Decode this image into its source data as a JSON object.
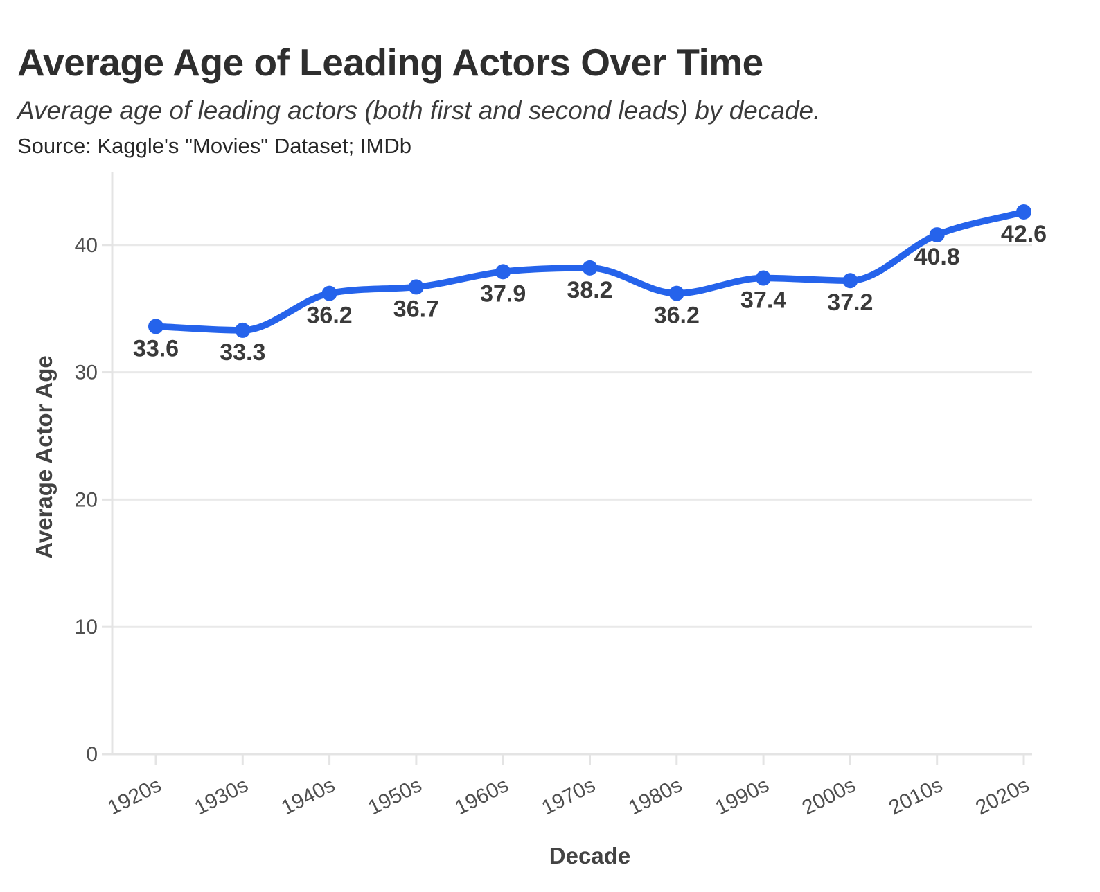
{
  "chart_data": {
    "type": "line",
    "title": "Average Age of Leading Actors Over Time",
    "subtitle": "Average age of leading actors (both first and second leads) by decade.",
    "source": "Source: Kaggle's \"Movies\" Dataset; IMDb",
    "xlabel": "Decade",
    "ylabel": "Average Actor Age",
    "categories": [
      "1920s",
      "1930s",
      "1940s",
      "1950s",
      "1960s",
      "1970s",
      "1980s",
      "1990s",
      "2000s",
      "2010s",
      "2020s"
    ],
    "values": [
      33.6,
      33.3,
      36.2,
      36.7,
      37.9,
      38.2,
      36.2,
      37.4,
      37.2,
      40.8,
      42.6
    ],
    "data_labels": [
      "33.6",
      "33.3",
      "36.2",
      "36.7",
      "37.9",
      "38.2",
      "36.2",
      "37.4",
      "37.2",
      "40.8",
      "42.6"
    ],
    "yticks": [
      0,
      10,
      20,
      30,
      40
    ],
    "ylim": [
      0,
      45.7
    ],
    "grid": "horizontal",
    "curve": "monotone",
    "legend": "none",
    "colors": {
      "line": "#2563eb",
      "point": "#2563eb",
      "gridline": "#e9e9e9",
      "axis_line": "#e4e4e4",
      "tick_label": "#4f4f4f",
      "data_label": "#3a3a3a",
      "axis_title": "#434343",
      "title": "#2e2e2e",
      "subtitle": "#3a3a3a",
      "source": "#262626",
      "background": "#ffffff"
    }
  }
}
